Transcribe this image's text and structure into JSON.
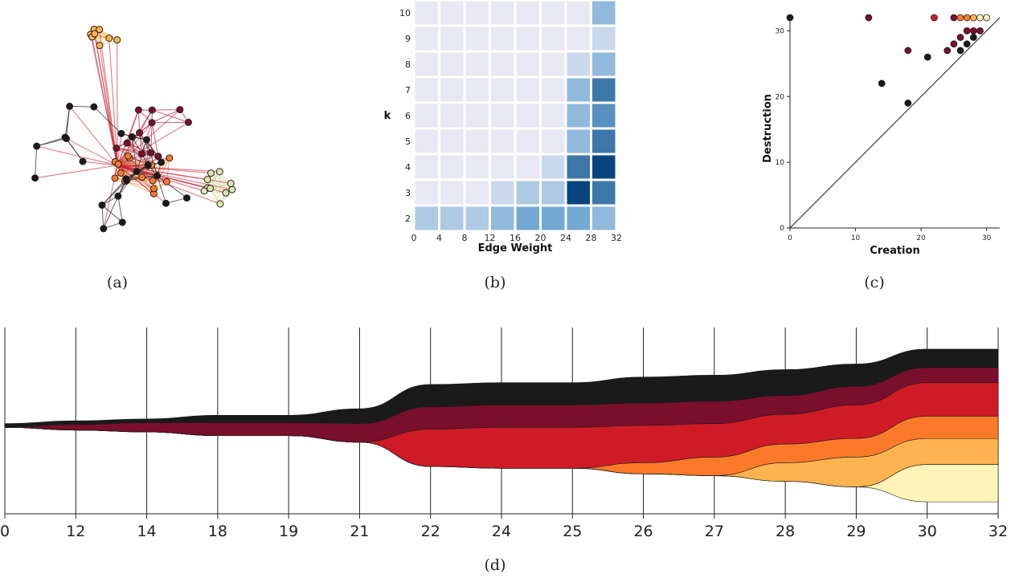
{
  "captions": {
    "a": "(a)",
    "b": "(b)",
    "c": "(c)",
    "d": "(d)"
  },
  "colors": {
    "black": "#1a1a1a",
    "maroon": "#7a0f2c",
    "red": "#cf1b26",
    "orange": "#fb7a2a",
    "yellow_orange": "#fdb450",
    "light_yellow": "#fff3b8",
    "pale_green": "#dde6b0",
    "heat_low": "#e8e8f4",
    "heat_high": "#08457e"
  },
  "chart_data": [
    {
      "id": "a",
      "type": "network",
      "title": "",
      "groups": [
        {
          "color": "yellow_orange",
          "nodes": 8
        },
        {
          "color": "orange",
          "nodes": 14
        },
        {
          "color": "pale_green",
          "nodes": 10
        },
        {
          "color": "maroon",
          "nodes": 12
        },
        {
          "color": "black",
          "nodes": 22
        }
      ]
    },
    {
      "id": "b",
      "type": "heatmap",
      "xlabel": "Edge Weight",
      "ylabel": "k",
      "x_ticks": [
        "0",
        "4",
        "8",
        "12",
        "16",
        "20",
        "24",
        "28",
        "32"
      ],
      "y_ticks": [
        "2",
        "3",
        "4",
        "5",
        "6",
        "7",
        "8",
        "9",
        "10"
      ],
      "grid_note": "rows k=2..10, columns edge-weight bins 0-4 ... 28-32",
      "values": [
        [
          2,
          2,
          2,
          3,
          4,
          4,
          4,
          3
        ],
        [
          0,
          0,
          0,
          1,
          2,
          2,
          8,
          6
        ],
        [
          0,
          0,
          0,
          0,
          0,
          1,
          6,
          8
        ],
        [
          0,
          0,
          0,
          0,
          0,
          0,
          3,
          6
        ],
        [
          0,
          0,
          0,
          0,
          0,
          0,
          3,
          5
        ],
        [
          0,
          0,
          0,
          0,
          0,
          0,
          3,
          6
        ],
        [
          0,
          0,
          0,
          0,
          0,
          0,
          1,
          3
        ],
        [
          0,
          0,
          0,
          0,
          0,
          0,
          0,
          1
        ],
        [
          0,
          0,
          0,
          0,
          0,
          0,
          0,
          3
        ]
      ],
      "value_scale_max": 8
    },
    {
      "id": "c",
      "type": "scatter",
      "xlabel": "Creation",
      "ylabel": "Destruction",
      "x_ticks": [
        0,
        10,
        20,
        30
      ],
      "y_ticks": [
        0,
        10,
        20,
        30
      ],
      "xlim": [
        0,
        32
      ],
      "ylim": [
        0,
        32
      ],
      "diagonal": true,
      "points": [
        {
          "x": 0,
          "y": 32,
          "c": "black"
        },
        {
          "x": 12,
          "y": 32,
          "c": "maroon"
        },
        {
          "x": 22,
          "y": 32,
          "c": "red"
        },
        {
          "x": 25,
          "y": 32,
          "c": "maroon"
        },
        {
          "x": 26,
          "y": 32,
          "c": "orange"
        },
        {
          "x": 27,
          "y": 32,
          "c": "orange"
        },
        {
          "x": 28,
          "y": 32,
          "c": "yellow_orange"
        },
        {
          "x": 29,
          "y": 32,
          "c": "light_yellow"
        },
        {
          "x": 30,
          "y": 32,
          "c": "light_yellow"
        },
        {
          "x": 27,
          "y": 30,
          "c": "maroon"
        },
        {
          "x": 28,
          "y": 30,
          "c": "maroon"
        },
        {
          "x": 29,
          "y": 30,
          "c": "maroon"
        },
        {
          "x": 26,
          "y": 29,
          "c": "maroon"
        },
        {
          "x": 28,
          "y": 29,
          "c": "black"
        },
        {
          "x": 25,
          "y": 28,
          "c": "maroon"
        },
        {
          "x": 27,
          "y": 28,
          "c": "black"
        },
        {
          "x": 18,
          "y": 27,
          "c": "maroon"
        },
        {
          "x": 24,
          "y": 27,
          "c": "maroon"
        },
        {
          "x": 26,
          "y": 27,
          "c": "black"
        },
        {
          "x": 21,
          "y": 26,
          "c": "black"
        },
        {
          "x": 14,
          "y": 22,
          "c": "black"
        },
        {
          "x": 18,
          "y": 19,
          "c": "black"
        }
      ]
    },
    {
      "id": "d",
      "type": "area",
      "title": "",
      "x_ticks": [
        "0",
        "12",
        "14",
        "18",
        "19",
        "21",
        "22",
        "24",
        "25",
        "26",
        "27",
        "28",
        "29",
        "30",
        "32"
      ],
      "series": [
        {
          "color": "black",
          "values": [
            0.02,
            0.02,
            0.02,
            0.04,
            0.04,
            0.08,
            0.12,
            0.12,
            0.12,
            0.14,
            0.14,
            0.14,
            0.12,
            0.1,
            0.1
          ]
        },
        {
          "color": "maroon",
          "values": [
            0.0,
            0.03,
            0.05,
            0.07,
            0.07,
            0.1,
            0.12,
            0.12,
            0.12,
            0.12,
            0.12,
            0.1,
            0.1,
            0.08,
            0.08
          ]
        },
        {
          "color": "red",
          "values": [
            0.0,
            0.0,
            0.0,
            0.0,
            0.0,
            0.0,
            0.2,
            0.22,
            0.22,
            0.2,
            0.18,
            0.16,
            0.18,
            0.18,
            0.18
          ]
        },
        {
          "color": "orange",
          "values": [
            0.0,
            0.0,
            0.0,
            0.0,
            0.0,
            0.0,
            0.0,
            0.0,
            0.0,
            0.06,
            0.1,
            0.1,
            0.1,
            0.12,
            0.12
          ]
        },
        {
          "color": "yellow_orange",
          "values": [
            0.0,
            0.0,
            0.0,
            0.0,
            0.0,
            0.0,
            0.0,
            0.0,
            0.0,
            0.0,
            0.0,
            0.1,
            0.16,
            0.14,
            0.14
          ]
        },
        {
          "color": "light_yellow",
          "values": [
            0.0,
            0.0,
            0.0,
            0.0,
            0.0,
            0.0,
            0.0,
            0.0,
            0.0,
            0.0,
            0.0,
            0.0,
            0.0,
            0.2,
            0.2
          ]
        }
      ]
    }
  ]
}
